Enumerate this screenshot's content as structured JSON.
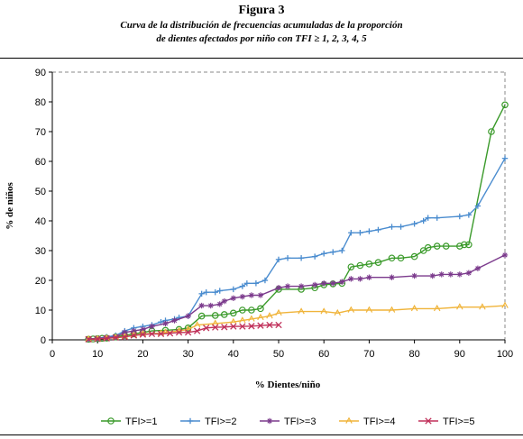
{
  "figure": {
    "title": "Figura 3",
    "subtitle_line1": "Curva de la distribución de frecuencias acumuladas de la proporción",
    "subtitle_line2": "de dientes afectados por niño con TFI ≥ 1, 2, 3, 4, 5"
  },
  "chart_data": {
    "type": "line",
    "xlabel": "% Dientes/niño",
    "ylabel": "% de niños",
    "xlim": [
      0,
      100
    ],
    "ylim": [
      0,
      90
    ],
    "xticks": [
      "0",
      "10",
      "20",
      "30",
      "40",
      "50",
      "60",
      "70",
      "80",
      "90",
      "100"
    ],
    "yticks": [
      "0",
      "10",
      "20",
      "30",
      "40",
      "50",
      "60",
      "70",
      "80",
      "90"
    ],
    "grid": "horizontal dashed at 90",
    "legend_position": "bottom",
    "series": [
      {
        "name": "TFI>=1",
        "color": "#3a9a2a",
        "marker": "circle",
        "points": [
          [
            8,
            0.2
          ],
          [
            9,
            0.3
          ],
          [
            10,
            0.4
          ],
          [
            11,
            0.5
          ],
          [
            12,
            0.6
          ],
          [
            14,
            1
          ],
          [
            16,
            1.5
          ],
          [
            18,
            2
          ],
          [
            20,
            2.5
          ],
          [
            22,
            3
          ],
          [
            25,
            3.2
          ],
          [
            28,
            3.5
          ],
          [
            30,
            4
          ],
          [
            33,
            8
          ],
          [
            36,
            8.2
          ],
          [
            38,
            8.5
          ],
          [
            40,
            9
          ],
          [
            42,
            10
          ],
          [
            44,
            10
          ],
          [
            46,
            10.5
          ],
          [
            50,
            17
          ],
          [
            55,
            17
          ],
          [
            58,
            17.5
          ],
          [
            60,
            18.5
          ],
          [
            62,
            18.8
          ],
          [
            64,
            19
          ],
          [
            66,
            24.5
          ],
          [
            68,
            25
          ],
          [
            70,
            25.5
          ],
          [
            72,
            26
          ],
          [
            75,
            27.5
          ],
          [
            77,
            27.5
          ],
          [
            80,
            28
          ],
          [
            82,
            30
          ],
          [
            83,
            31
          ],
          [
            85,
            31.5
          ],
          [
            87,
            31.5
          ],
          [
            90,
            31.5
          ],
          [
            91,
            32
          ],
          [
            92,
            32
          ],
          [
            97,
            70
          ],
          [
            100,
            79
          ]
        ]
      },
      {
        "name": "TFI>=2",
        "color": "#4a8ccf",
        "marker": "plus",
        "points": [
          [
            8,
            0.3
          ],
          [
            10,
            0.5
          ],
          [
            12,
            1
          ],
          [
            14,
            1.5
          ],
          [
            16,
            3
          ],
          [
            18,
            4
          ],
          [
            20,
            4.5
          ],
          [
            22,
            5
          ],
          [
            24,
            6
          ],
          [
            25,
            6.5
          ],
          [
            27,
            7
          ],
          [
            28,
            7.5
          ],
          [
            30,
            8
          ],
          [
            33,
            15.5
          ],
          [
            34,
            16
          ],
          [
            36,
            16
          ],
          [
            37,
            16.5
          ],
          [
            40,
            17
          ],
          [
            42,
            18
          ],
          [
            43,
            19
          ],
          [
            45,
            19
          ],
          [
            47,
            20
          ],
          [
            50,
            27
          ],
          [
            52,
            27.5
          ],
          [
            55,
            27.5
          ],
          [
            58,
            28
          ],
          [
            60,
            29
          ],
          [
            62,
            29.5
          ],
          [
            64,
            30
          ],
          [
            66,
            36
          ],
          [
            68,
            36
          ],
          [
            70,
            36.5
          ],
          [
            72,
            37
          ],
          [
            75,
            38
          ],
          [
            77,
            38
          ],
          [
            80,
            39
          ],
          [
            82,
            40
          ],
          [
            83,
            41
          ],
          [
            85,
            41
          ],
          [
            90,
            41.5
          ],
          [
            92,
            42
          ],
          [
            94,
            45
          ],
          [
            100,
            61
          ]
        ]
      },
      {
        "name": "TFI>=3",
        "color": "#7b3a8c",
        "marker": "star",
        "points": [
          [
            8,
            0.3
          ],
          [
            10,
            0.5
          ],
          [
            12,
            0.8
          ],
          [
            14,
            1
          ],
          [
            16,
            2.5
          ],
          [
            18,
            3
          ],
          [
            20,
            3.5
          ],
          [
            22,
            4.5
          ],
          [
            25,
            5.5
          ],
          [
            27,
            6.5
          ],
          [
            30,
            8
          ],
          [
            33,
            11.5
          ],
          [
            35,
            11.5
          ],
          [
            37,
            12
          ],
          [
            38,
            13
          ],
          [
            40,
            14
          ],
          [
            42,
            14.5
          ],
          [
            44,
            15
          ],
          [
            46,
            15
          ],
          [
            50,
            17.5
          ],
          [
            52,
            18
          ],
          [
            55,
            18
          ],
          [
            58,
            18.5
          ],
          [
            60,
            19
          ],
          [
            62,
            19
          ],
          [
            64,
            19.5
          ],
          [
            66,
            20.5
          ],
          [
            68,
            20.5
          ],
          [
            70,
            21
          ],
          [
            75,
            21
          ],
          [
            80,
            21.5
          ],
          [
            84,
            21.5
          ],
          [
            86,
            22
          ],
          [
            88,
            22
          ],
          [
            90,
            22
          ],
          [
            92,
            22.5
          ],
          [
            94,
            24
          ],
          [
            100,
            28.5
          ]
        ]
      },
      {
        "name": "TFI>=4",
        "color": "#f0b43a",
        "marker": "triangle",
        "points": [
          [
            8,
            0.2
          ],
          [
            10,
            0.3
          ],
          [
            12,
            0.5
          ],
          [
            14,
            0.8
          ],
          [
            16,
            1
          ],
          [
            18,
            1.5
          ],
          [
            20,
            2
          ],
          [
            24,
            2.2
          ],
          [
            25,
            2.5
          ],
          [
            28,
            3
          ],
          [
            30,
            3.5
          ],
          [
            32,
            5
          ],
          [
            36,
            5.5
          ],
          [
            40,
            6
          ],
          [
            42,
            6.5
          ],
          [
            44,
            7
          ],
          [
            46,
            7.5
          ],
          [
            48,
            8
          ],
          [
            50,
            9
          ],
          [
            55,
            9.5
          ],
          [
            60,
            9.5
          ],
          [
            63,
            9
          ],
          [
            66,
            10
          ],
          [
            70,
            10
          ],
          [
            75,
            10
          ],
          [
            80,
            10.5
          ],
          [
            85,
            10.5
          ],
          [
            90,
            11
          ],
          [
            95,
            11
          ],
          [
            100,
            11.5
          ]
        ]
      },
      {
        "name": "TFI>=5",
        "color": "#c0305a",
        "marker": "x",
        "points": [
          [
            8,
            0.2
          ],
          [
            10,
            0.3
          ],
          [
            12,
            0.5
          ],
          [
            14,
            0.8
          ],
          [
            16,
            1
          ],
          [
            18,
            1.5
          ],
          [
            20,
            1.8
          ],
          [
            22,
            2
          ],
          [
            24,
            2
          ],
          [
            26,
            2.2
          ],
          [
            28,
            2.5
          ],
          [
            30,
            2.5
          ],
          [
            32,
            3
          ],
          [
            34,
            4
          ],
          [
            36,
            4.2
          ],
          [
            38,
            4.3
          ],
          [
            40,
            4.5
          ],
          [
            42,
            4.5
          ],
          [
            44,
            4.6
          ],
          [
            46,
            4.8
          ],
          [
            48,
            5
          ],
          [
            50,
            5
          ]
        ]
      }
    ]
  }
}
